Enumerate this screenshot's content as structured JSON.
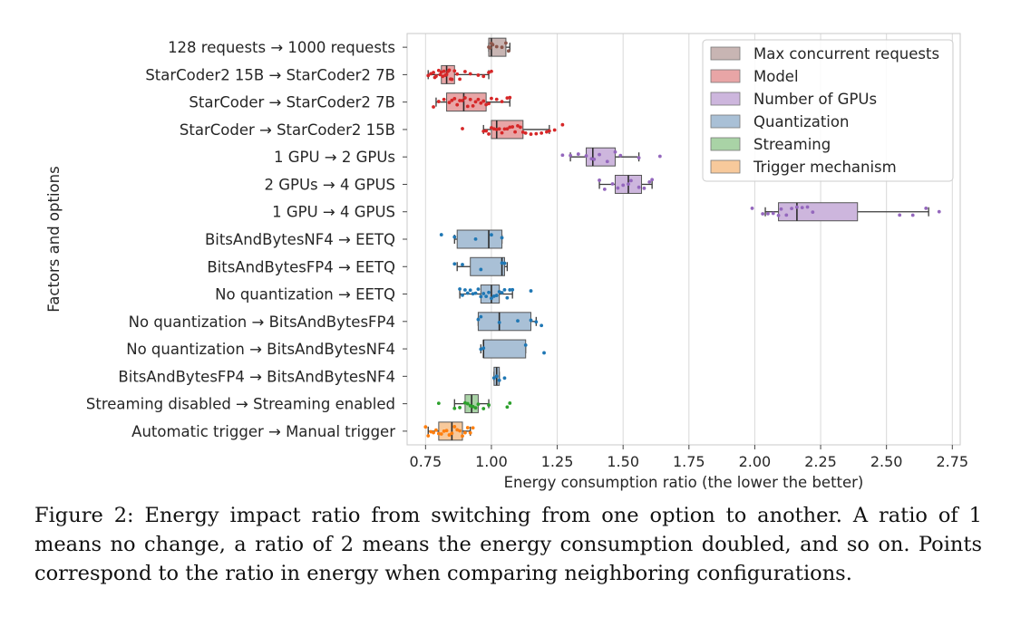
{
  "chart_data": {
    "type": "box",
    "orientation": "horizontal",
    "xlabel": "Energy consumption ratio (the lower the better)",
    "ylabel": "Factors and options",
    "xlim": [
      0.68,
      2.78
    ],
    "xticks": [
      0.75,
      1.0,
      1.25,
      1.5,
      1.75,
      2.0,
      2.25,
      2.5,
      2.75
    ],
    "xtick_labels": [
      "0.75",
      "1.00",
      "1.25",
      "1.50",
      "1.75",
      "2.00",
      "2.25",
      "2.50",
      "2.75"
    ],
    "grid": "vertical",
    "legend_position": "top-right",
    "groups": [
      {
        "name": "Max concurrent requests",
        "box_color": "#c8b5b3",
        "point_color": "#8c564b"
      },
      {
        "name": "Model",
        "box_color": "#e8a5a6",
        "point_color": "#d62728"
      },
      {
        "name": "Number of GPUs",
        "box_color": "#cdb6dd",
        "point_color": "#9467bd"
      },
      {
        "name": "Quantization",
        "box_color": "#a9c0d6",
        "point_color": "#1f77b4"
      },
      {
        "name": "Streaming",
        "box_color": "#a9d3a6",
        "point_color": "#2ca02c"
      },
      {
        "name": "Trigger mechanism",
        "box_color": "#f7c99b",
        "point_color": "#ff7f0e"
      }
    ],
    "rows": [
      {
        "label": "128 requests → 1000 requests",
        "group": 0,
        "whislo": 0.99,
        "q1": 0.99,
        "med": 1.0,
        "q3": 1.055,
        "whishi": 1.07,
        "points": [
          0.99,
          0.995,
          1.0,
          1.005,
          1.02,
          1.04,
          1.055,
          1.065
        ]
      },
      {
        "label": "StarCoder2 15B → StarCoder2 7B",
        "group": 1,
        "whislo": 0.76,
        "q1": 0.81,
        "med": 0.83,
        "q3": 0.86,
        "whishi": 0.99,
        "points": [
          0.76,
          0.77,
          0.78,
          0.785,
          0.79,
          0.8,
          0.805,
          0.81,
          0.815,
          0.82,
          0.825,
          0.83,
          0.835,
          0.84,
          0.845,
          0.85,
          0.86,
          0.87,
          0.88,
          0.9,
          0.92,
          0.95,
          0.97,
          0.99,
          1.0
        ]
      },
      {
        "label": "StarCoder → StarCoder2 7B",
        "group": 1,
        "whislo": 0.79,
        "q1": 0.83,
        "med": 0.895,
        "q3": 0.98,
        "whishi": 1.07,
        "points": [
          0.78,
          0.8,
          0.82,
          0.84,
          0.85,
          0.86,
          0.87,
          0.88,
          0.89,
          0.9,
          0.91,
          0.92,
          0.93,
          0.94,
          0.95,
          0.96,
          0.97,
          0.98,
          0.99,
          1.0,
          1.02,
          1.04,
          1.06,
          1.07
        ]
      },
      {
        "label": "StarCoder → StarCoder2 15B",
        "group": 1,
        "whislo": 0.97,
        "q1": 1.0,
        "med": 1.02,
        "q3": 1.12,
        "whishi": 1.22,
        "points": [
          0.89,
          0.97,
          0.98,
          0.99,
          1.0,
          1.01,
          1.02,
          1.03,
          1.04,
          1.05,
          1.06,
          1.07,
          1.08,
          1.09,
          1.1,
          1.11,
          1.12,
          1.13,
          1.15,
          1.17,
          1.19,
          1.21,
          1.22,
          1.24,
          1.27
        ]
      },
      {
        "label": "1 GPU → 2 GPUs",
        "group": 2,
        "whislo": 1.3,
        "q1": 1.36,
        "med": 1.385,
        "q3": 1.47,
        "whishi": 1.56,
        "points": [
          1.27,
          1.3,
          1.33,
          1.36,
          1.38,
          1.39,
          1.41,
          1.44,
          1.47,
          1.49,
          1.56,
          1.64
        ]
      },
      {
        "label": "2 GPUs → 4 GPUS",
        "group": 2,
        "whislo": 1.41,
        "q1": 1.47,
        "med": 1.52,
        "q3": 1.57,
        "whishi": 1.61,
        "points": [
          1.41,
          1.43,
          1.46,
          1.48,
          1.5,
          1.52,
          1.53,
          1.56,
          1.58,
          1.6,
          1.61
        ]
      },
      {
        "label": "1 GPU → 4 GPUS",
        "group": 2,
        "whislo": 2.04,
        "q1": 2.09,
        "med": 2.16,
        "q3": 2.39,
        "whishi": 2.66,
        "points": [
          1.99,
          2.03,
          2.05,
          2.07,
          2.09,
          2.1,
          2.12,
          2.14,
          2.16,
          2.18,
          2.2,
          2.22,
          2.55,
          2.6,
          2.65,
          2.7
        ]
      },
      {
        "label": "BitsAndBytesNF4 → EETQ",
        "group": 3,
        "whislo": 0.86,
        "q1": 0.87,
        "med": 0.99,
        "q3": 1.04,
        "whishi": 1.04,
        "points": [
          0.81,
          0.86,
          0.94,
          1.0,
          1.04
        ]
      },
      {
        "label": "BitsAndBytesFP4 → EETQ",
        "group": 3,
        "whislo": 0.87,
        "q1": 0.92,
        "med": 1.04,
        "q3": 1.05,
        "whishi": 1.06,
        "points": [
          0.86,
          0.89,
          0.96,
          1.04,
          1.05
        ]
      },
      {
        "label": "No quantization → EETQ",
        "group": 3,
        "whislo": 0.88,
        "q1": 0.96,
        "med": 1.0,
        "q3": 1.03,
        "whishi": 1.08,
        "points": [
          0.88,
          0.89,
          0.9,
          0.91,
          0.92,
          0.93,
          0.94,
          0.95,
          0.96,
          0.97,
          0.98,
          0.99,
          1.0,
          1.01,
          1.02,
          1.03,
          1.04,
          1.05,
          1.06,
          1.07,
          1.08,
          1.15
        ]
      },
      {
        "label": "No quantization → BitsAndBytesFP4",
        "group": 3,
        "whislo": 0.95,
        "q1": 0.95,
        "med": 1.03,
        "q3": 1.15,
        "whishi": 1.17,
        "points": [
          0.95,
          0.96,
          1.03,
          1.1,
          1.15,
          1.17,
          1.19
        ]
      },
      {
        "label": "No quantization → BitsAndBytesNF4",
        "group": 3,
        "whislo": 0.96,
        "q1": 0.97,
        "med": 0.97,
        "q3": 1.13,
        "whishi": 1.13,
        "points": [
          0.96,
          0.97,
          1.13,
          1.2
        ]
      },
      {
        "label": "BitsAndBytesFP4 → BitsAndBytesNF4",
        "group": 3,
        "whislo": 1.01,
        "q1": 1.01,
        "med": 1.02,
        "q3": 1.03,
        "whishi": 1.03,
        "points": [
          1.01,
          1.02,
          1.03,
          1.05
        ]
      },
      {
        "label": "Streaming disabled → Streaming enabled",
        "group": 4,
        "whislo": 0.86,
        "q1": 0.9,
        "med": 0.925,
        "q3": 0.95,
        "whishi": 0.99,
        "points": [
          0.8,
          0.86,
          0.88,
          0.9,
          0.91,
          0.92,
          0.93,
          0.94,
          0.95,
          0.97,
          0.99,
          1.06,
          1.07
        ]
      },
      {
        "label": "Automatic trigger → Manual trigger",
        "group": 5,
        "whislo": 0.76,
        "q1": 0.8,
        "med": 0.85,
        "q3": 0.89,
        "whishi": 0.92,
        "points": [
          0.75,
          0.76,
          0.77,
          0.78,
          0.79,
          0.8,
          0.81,
          0.82,
          0.83,
          0.84,
          0.85,
          0.86,
          0.87,
          0.88,
          0.89,
          0.9,
          0.91,
          0.92,
          0.93
        ]
      }
    ]
  },
  "caption": {
    "text": "Figure 2: Energy impact ratio from switching from one option to another. A ratio of 1 means no change, a ratio of 2 means the energy consumption doubled, and so on. Points correspond to the ratio in energy when comparing neighboring configurations."
  }
}
